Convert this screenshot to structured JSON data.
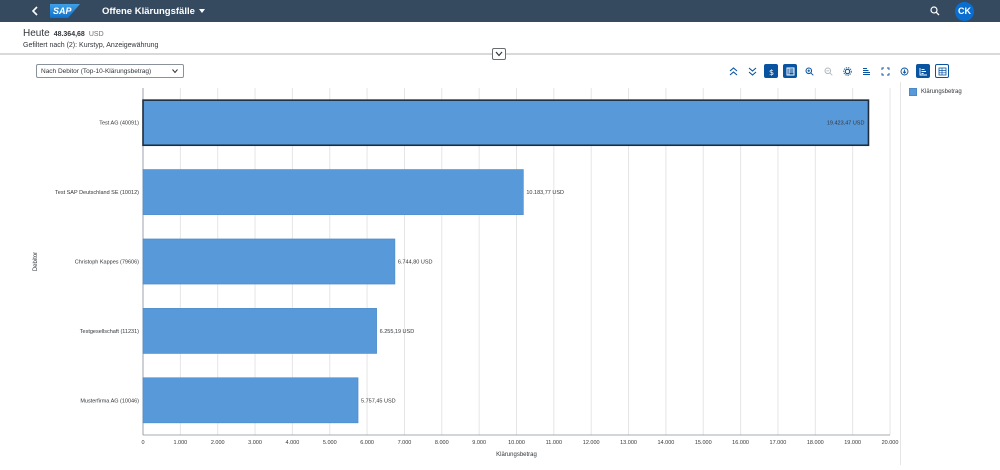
{
  "shell": {
    "app_title": "Offene Klärungsfälle",
    "logo_text": "SAP",
    "avatar_initials": "CK"
  },
  "header": {
    "today_label": "Heute",
    "amount": "48.364,68",
    "currency": "USD",
    "filter_text": "Gefiltert nach (2): Kurstyp, Anzeigewährung"
  },
  "toolbar": {
    "selected_view": "Nach Debitor (Top-10-Klärungsbetrag)",
    "icons": [
      "collapse-all-icon",
      "expand-all-icon",
      "currency-icon",
      "table-toggle-icon",
      "zoom-in-icon",
      "zoom-out-icon",
      "settings-icon",
      "sort-icon",
      "fullscreen-icon",
      "download-icon",
      "chart-view-icon",
      "table-view-icon"
    ]
  },
  "legend": {
    "label": "Klärungsbetrag",
    "color": "#5899da"
  },
  "chart_data": {
    "type": "bar",
    "orientation": "horizontal",
    "categories": [
      "Test AG (40091)",
      "Test SAP Deutschland SE (10012)",
      "Christoph Kappes (79606)",
      "Testgesellschaft (11231)",
      "Musterfirma AG (10046)"
    ],
    "values": [
      19423.47,
      10183.77,
      6744.8,
      6255.19,
      5757.45
    ],
    "value_labels": [
      "19.423,47 USD",
      "10.183,77 USD",
      "6.744,80 USD",
      "6.255,19 USD",
      "5.757,45 USD"
    ],
    "xlabel": "Klärungsbetrag",
    "ylabel": "Debitor",
    "xlim": [
      0,
      20000
    ],
    "xticks": [
      0,
      1000,
      2000,
      3000,
      4000,
      5000,
      6000,
      7000,
      8000,
      9000,
      10000,
      11000,
      12000,
      13000,
      14000,
      15000,
      16000,
      17000,
      18000,
      19000,
      20000
    ],
    "xtick_labels": [
      "0",
      "1.000",
      "2.000",
      "3.000",
      "4.000",
      "5.000",
      "6.000",
      "7.000",
      "8.000",
      "9.000",
      "10.000",
      "11.000",
      "12.000",
      "13.000",
      "14.000",
      "15.000",
      "16.000",
      "17.000",
      "18.000",
      "19.000",
      "20.000"
    ],
    "selected_index": 0,
    "bar_color": "#5899da",
    "grid": true
  }
}
